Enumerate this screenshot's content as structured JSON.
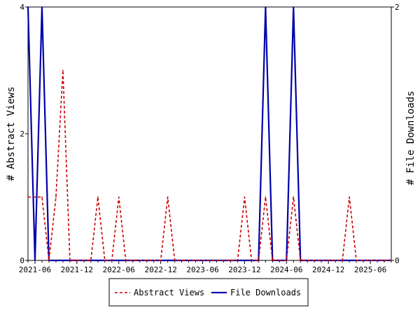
{
  "chart_data": {
    "type": "line",
    "x": [
      "2021-05",
      "2021-06",
      "2021-07",
      "2021-08",
      "2021-09",
      "2021-10",
      "2021-11",
      "2021-12",
      "2022-01",
      "2022-02",
      "2022-03",
      "2022-04",
      "2022-05",
      "2022-06",
      "2022-07",
      "2022-08",
      "2022-09",
      "2022-10",
      "2022-11",
      "2022-12",
      "2023-01",
      "2023-02",
      "2023-03",
      "2023-04",
      "2023-05",
      "2023-06",
      "2023-07",
      "2023-08",
      "2023-09",
      "2023-10",
      "2023-11",
      "2023-12",
      "2024-01",
      "2024-02",
      "2024-03",
      "2024-04",
      "2024-05",
      "2024-06",
      "2024-07",
      "2024-08",
      "2024-09",
      "2024-10",
      "2024-11",
      "2024-12",
      "2025-01",
      "2025-02",
      "2025-03",
      "2025-04",
      "2025-05",
      "2025-06",
      "2025-07",
      "2025-08",
      "2025-09"
    ],
    "x_tick_labels": [
      "2021-06",
      "2021-12",
      "2022-06",
      "2022-12",
      "2023-06",
      "2023-12",
      "2024-06",
      "2024-12",
      "2025-06"
    ],
    "series": [
      {
        "name": "Abstract Views",
        "axis": "left",
        "color": "#cc0000",
        "style": "dashed",
        "values": [
          1,
          1,
          1,
          0,
          1,
          3,
          0,
          0,
          0,
          0,
          1,
          0,
          0,
          1,
          0,
          0,
          0,
          0,
          0,
          0,
          1,
          0,
          0,
          0,
          0,
          0,
          0,
          0,
          0,
          0,
          0,
          1,
          0,
          0,
          1,
          0,
          0,
          0,
          1,
          0,
          0,
          0,
          0,
          0,
          0,
          0,
          1,
          0,
          0,
          0,
          0,
          0,
          0
        ]
      },
      {
        "name": "File Downloads",
        "axis": "right",
        "color": "#0000aa",
        "style": "solid",
        "values": [
          2,
          0,
          2,
          0,
          0,
          0,
          0,
          0,
          0,
          0,
          0,
          0,
          0,
          0,
          0,
          0,
          0,
          0,
          0,
          0,
          0,
          0,
          0,
          0,
          0,
          0,
          0,
          0,
          0,
          0,
          0,
          0,
          0,
          0,
          2,
          0,
          0,
          0,
          2,
          0,
          0,
          0,
          0,
          0,
          0,
          0,
          0,
          0,
          0,
          0,
          0,
          0,
          0
        ]
      }
    ],
    "ylabel_left": "# Abstract Views",
    "ylabel_right": "# File Downloads",
    "ylim_left": [
      0,
      4
    ],
    "yticks_left": [
      0,
      2,
      4
    ],
    "ylim_right": [
      0,
      2
    ],
    "yticks_right": [
      0,
      2
    ],
    "grid": false,
    "legend_position": "bottom-center"
  }
}
